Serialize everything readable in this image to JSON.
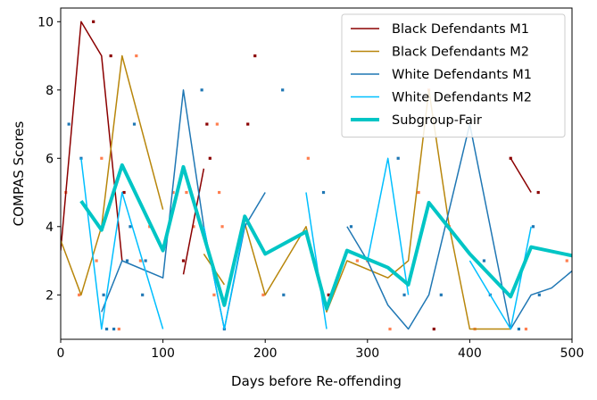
{
  "chart_data": {
    "type": "line",
    "xlabel": "Days before Re-offending",
    "ylabel": "COMPAS Scores",
    "xlim": [
      0,
      500
    ],
    "ylim": [
      0.7,
      10.4
    ],
    "xticks": [
      "0",
      "100",
      "200",
      "300",
      "400",
      "500"
    ],
    "yticks": [
      "2",
      "4",
      "6",
      "8",
      "10"
    ],
    "xtick_values": [
      0,
      100,
      200,
      300,
      400,
      500
    ],
    "ytick_values": [
      2,
      4,
      6,
      8,
      10
    ],
    "legend_position": "top-right",
    "series": [
      {
        "name": "Black Defendants M1",
        "color": "#8b0000",
        "width": "thin",
        "segments": [
          [
            [
              0,
              3.3
            ],
            [
              20,
              10.0
            ],
            [
              40,
              9.0
            ],
            [
              60,
              3.0
            ]
          ],
          [
            [
              120,
              2.6
            ],
            [
              140,
              5.7
            ]
          ],
          [
            [
              440,
              6.0
            ],
            [
              460,
              5.0
            ]
          ]
        ]
      },
      {
        "name": "Black Defendants M2",
        "color": "#b8860b",
        "width": "thin",
        "segments": [
          [
            [
              0,
              3.6
            ],
            [
              20,
              2.0
            ],
            [
              40,
              4.0
            ],
            [
              60,
              9.0
            ],
            [
              100,
              4.5
            ]
          ],
          [
            [
              140,
              3.2
            ],
            [
              160,
              2.3
            ]
          ],
          [
            [
              180,
              4.1
            ],
            [
              200,
              2.0
            ],
            [
              240,
              4.0
            ],
            [
              260,
              1.5
            ],
            [
              280,
              3.0
            ],
            [
              320,
              2.5
            ],
            [
              340,
              3.0
            ],
            [
              360,
              8.0
            ],
            [
              380,
              4.0
            ],
            [
              400,
              1.0
            ],
            [
              440,
              1.0
            ]
          ]
        ]
      },
      {
        "name": "White Defendants M1",
        "color": "#1f77b4",
        "width": "thin",
        "segments": [
          [
            [
              40,
              1.5
            ],
            [
              60,
              3.0
            ],
            [
              100,
              2.5
            ],
            [
              120,
              8.0
            ],
            [
              140,
              4.0
            ],
            [
              160,
              1.0
            ],
            [
              180,
              4.0
            ],
            [
              200,
              5.0
            ]
          ],
          [
            [
              280,
              4.0
            ],
            [
              300,
              3.0
            ],
            [
              320,
              1.7
            ],
            [
              340,
              1.0
            ],
            [
              360,
              2.0
            ],
            [
              400,
              7.0
            ],
            [
              440,
              1.0
            ],
            [
              460,
              2.0
            ],
            [
              480,
              2.2
            ],
            [
              500,
              2.7
            ]
          ]
        ]
      },
      {
        "name": "White Defendants M2",
        "color": "#00bfff",
        "width": "thin",
        "segments": [
          [
            [
              20,
              6.0
            ],
            [
              40,
              1.0
            ],
            [
              60,
              5.0
            ],
            [
              100,
              1.0
            ]
          ],
          [
            [
              140,
              4.0
            ],
            [
              160,
              1.0
            ],
            [
              180,
              4.1
            ]
          ],
          [
            [
              240,
              5.0
            ],
            [
              260,
              1.0
            ]
          ],
          [
            [
              300,
              3.0
            ],
            [
              320,
              6.0
            ],
            [
              340,
              2.0
            ]
          ],
          [
            [
              400,
              3.0
            ],
            [
              440,
              1.0
            ],
            [
              460,
              4.0
            ]
          ]
        ]
      },
      {
        "name": "Subgroup-Fair",
        "color": "#00c5c5",
        "width": "thick",
        "segments": [
          [
            [
              20,
              4.75
            ],
            [
              40,
              3.9
            ],
            [
              60,
              5.8
            ],
            [
              100,
              3.3
            ],
            [
              120,
              5.75
            ],
            [
              160,
              1.7
            ],
            [
              180,
              4.3
            ],
            [
              200,
              3.2
            ],
            [
              240,
              3.85
            ],
            [
              260,
              1.6
            ],
            [
              280,
              3.3
            ],
            [
              320,
              2.8
            ],
            [
              340,
              2.3
            ],
            [
              360,
              4.7
            ],
            [
              400,
              3.2
            ],
            [
              440,
              1.95
            ],
            [
              460,
              3.4
            ],
            [
              500,
              3.15
            ]
          ]
        ]
      }
    ],
    "scatter": {
      "marker": "square",
      "points": [
        {
          "x": 5,
          "y": 5.0,
          "color": "#ff7f50"
        },
        {
          "x": 8,
          "y": 7.0,
          "color": "#1f77b4"
        },
        {
          "x": 18,
          "y": 2.0,
          "color": "#ff7f50"
        },
        {
          "x": 20,
          "y": 6.0,
          "color": "#1f77b4"
        },
        {
          "x": 32,
          "y": 10.0,
          "color": "#8b0000"
        },
        {
          "x": 35,
          "y": 3.0,
          "color": "#ff7f50"
        },
        {
          "x": 40,
          "y": 6.0,
          "color": "#ff7f50"
        },
        {
          "x": 42,
          "y": 2.0,
          "color": "#1f77b4"
        },
        {
          "x": 45,
          "y": 1.0,
          "color": "#1f77b4"
        },
        {
          "x": 49,
          "y": 9.0,
          "color": "#8b0000"
        },
        {
          "x": 52,
          "y": 1.0,
          "color": "#1f77b4"
        },
        {
          "x": 57,
          "y": 1.0,
          "color": "#ff7f50"
        },
        {
          "x": 62,
          "y": 5.0,
          "color": "#8b0000"
        },
        {
          "x": 65,
          "y": 3.0,
          "color": "#1f77b4"
        },
        {
          "x": 68,
          "y": 4.0,
          "color": "#1f77b4"
        },
        {
          "x": 72,
          "y": 7.0,
          "color": "#1f77b4"
        },
        {
          "x": 74,
          "y": 9.0,
          "color": "#ff7f50"
        },
        {
          "x": 78,
          "y": 3.0,
          "color": "#ff7f50"
        },
        {
          "x": 80,
          "y": 2.0,
          "color": "#1f77b4"
        },
        {
          "x": 83,
          "y": 3.0,
          "color": "#1f77b4"
        },
        {
          "x": 87,
          "y": 4.0,
          "color": "#ff7f50"
        },
        {
          "x": 110,
          "y": 5.0,
          "color": "#ff7f50"
        },
        {
          "x": 120,
          "y": 3.0,
          "color": "#8b0000"
        },
        {
          "x": 123,
          "y": 5.0,
          "color": "#ff7f50"
        },
        {
          "x": 130,
          "y": 4.0,
          "color": "#ff7f50"
        },
        {
          "x": 138,
          "y": 8.0,
          "color": "#1f77b4"
        },
        {
          "x": 143,
          "y": 7.0,
          "color": "#8b0000"
        },
        {
          "x": 146,
          "y": 6.0,
          "color": "#8b0000"
        },
        {
          "x": 150,
          "y": 2.0,
          "color": "#ff7f50"
        },
        {
          "x": 153,
          "y": 7.0,
          "color": "#ff7f50"
        },
        {
          "x": 155,
          "y": 5.0,
          "color": "#ff7f50"
        },
        {
          "x": 158,
          "y": 4.0,
          "color": "#ff7f50"
        },
        {
          "x": 160,
          "y": 1.0,
          "color": "#1f77b4"
        },
        {
          "x": 178,
          "y": 4.0,
          "color": "#1f77b4"
        },
        {
          "x": 183,
          "y": 7.0,
          "color": "#8b0000"
        },
        {
          "x": 190,
          "y": 9.0,
          "color": "#8b0000"
        },
        {
          "x": 198,
          "y": 2.0,
          "color": "#ff7f50"
        },
        {
          "x": 217,
          "y": 8.0,
          "color": "#1f77b4"
        },
        {
          "x": 218,
          "y": 2.0,
          "color": "#1f77b4"
        },
        {
          "x": 242,
          "y": 6.0,
          "color": "#ff7f50"
        },
        {
          "x": 257,
          "y": 5.0,
          "color": "#1f77b4"
        },
        {
          "x": 262,
          "y": 2.0,
          "color": "#8b0000"
        },
        {
          "x": 284,
          "y": 4.0,
          "color": "#1f77b4"
        },
        {
          "x": 290,
          "y": 3.0,
          "color": "#ff7f50"
        },
        {
          "x": 300,
          "y": 3.0,
          "color": "#ff7f50"
        },
        {
          "x": 322,
          "y": 1.0,
          "color": "#ff7f50"
        },
        {
          "x": 330,
          "y": 6.0,
          "color": "#1f77b4"
        },
        {
          "x": 336,
          "y": 2.0,
          "color": "#1f77b4"
        },
        {
          "x": 350,
          "y": 5.0,
          "color": "#ff7f50"
        },
        {
          "x": 360,
          "y": 8.0,
          "color": "#ff7f50"
        },
        {
          "x": 365,
          "y": 1.0,
          "color": "#8b0000"
        },
        {
          "x": 372,
          "y": 2.0,
          "color": "#1f77b4"
        },
        {
          "x": 380,
          "y": 4.0,
          "color": "#ff7f50"
        },
        {
          "x": 405,
          "y": 1.0,
          "color": "#ff7f50"
        },
        {
          "x": 414,
          "y": 3.0,
          "color": "#1f77b4"
        },
        {
          "x": 420,
          "y": 2.0,
          "color": "#1f77b4"
        },
        {
          "x": 440,
          "y": 6.0,
          "color": "#8b0000"
        },
        {
          "x": 448,
          "y": 1.0,
          "color": "#1f77b4"
        },
        {
          "x": 455,
          "y": 1.0,
          "color": "#ff7f50"
        },
        {
          "x": 462,
          "y": 4.0,
          "color": "#1f77b4"
        },
        {
          "x": 467,
          "y": 5.0,
          "color": "#8b0000"
        },
        {
          "x": 468,
          "y": 2.0,
          "color": "#1f77b4"
        },
        {
          "x": 495,
          "y": 3.0,
          "color": "#ff7f50"
        }
      ]
    }
  }
}
